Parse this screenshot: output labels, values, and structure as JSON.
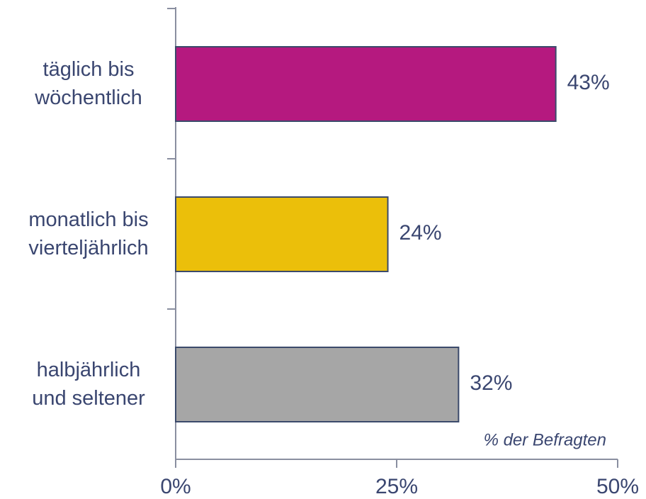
{
  "chart_data": {
    "type": "hbar",
    "categories": [
      "täglich bis\nwöchentlich",
      "monatlich bis\nvierteljährlich",
      "halbjährlich\nund seltener"
    ],
    "values": [
      43,
      24,
      32
    ],
    "value_labels": [
      "43%",
      "24%",
      "32%"
    ],
    "colors": [
      "#b5197f",
      "#ebbf0a",
      "#a6a6a6"
    ],
    "x_label": "% der Befragten",
    "xlim": [
      0,
      50
    ],
    "xticks": [
      {
        "value": 0,
        "label": "0%"
      },
      {
        "value": 25,
        "label": "25%"
      },
      {
        "value": 50,
        "label": "50%"
      }
    ]
  }
}
